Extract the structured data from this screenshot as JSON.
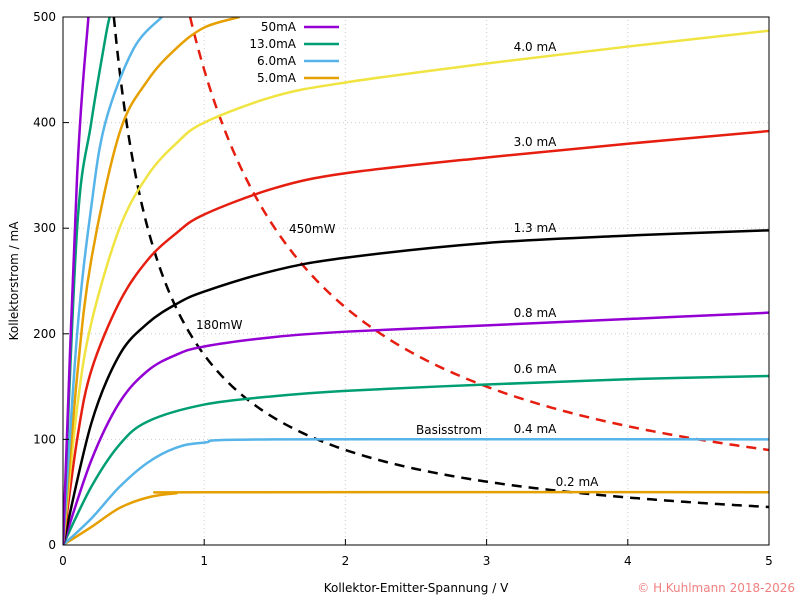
{
  "chart_data": {
    "type": "line",
    "xlabel": "Kollektor-Emitter-Spannung / V",
    "ylabel": "Kollektorstrom / mA",
    "xlim": [
      0,
      5
    ],
    "ylim": [
      0,
      500
    ],
    "xticks": [
      "0",
      "1",
      "2",
      "3",
      "4",
      "5"
    ],
    "yticks": [
      "0",
      "100",
      "200",
      "300",
      "400",
      "500"
    ],
    "grid": true,
    "legend_position": "top-left",
    "legend_title": "Basisstrom",
    "series": [
      {
        "name": "0.2 mA",
        "color": "#e69f00",
        "points": [
          [
            0,
            0
          ],
          [
            0.2,
            17
          ],
          [
            0.4,
            35
          ],
          [
            0.6,
            45
          ],
          [
            0.8,
            49
          ],
          [
            1,
            50
          ],
          [
            5,
            50
          ]
        ]
      },
      {
        "name": "0.4 mA",
        "color": "#56b4e9",
        "points": [
          [
            0,
            0
          ],
          [
            0.2,
            25
          ],
          [
            0.4,
            55
          ],
          [
            0.6,
            78
          ],
          [
            0.8,
            92
          ],
          [
            1,
            97
          ],
          [
            1.5,
            100
          ],
          [
            5,
            100
          ]
        ]
      },
      {
        "name": "0.6 mA",
        "color": "#009e73",
        "points": [
          [
            0,
            0
          ],
          [
            0.2,
            55
          ],
          [
            0.4,
            95
          ],
          [
            0.6,
            117
          ],
          [
            1,
            133
          ],
          [
            1.5,
            141
          ],
          [
            2,
            146
          ],
          [
            3,
            152
          ],
          [
            4,
            157
          ],
          [
            5,
            160
          ]
        ]
      },
      {
        "name": "0.8 mA",
        "color": "#9400d3",
        "points": [
          [
            0,
            0
          ],
          [
            0.2,
            80
          ],
          [
            0.4,
            135
          ],
          [
            0.6,
            165
          ],
          [
            0.8,
            180
          ],
          [
            1,
            188
          ],
          [
            1.5,
            197
          ],
          [
            2,
            202
          ],
          [
            3,
            208
          ],
          [
            4,
            214
          ],
          [
            5,
            220
          ]
        ]
      },
      {
        "name": "1.3 mA",
        "color": "#000000",
        "points": [
          [
            0,
            0
          ],
          [
            0.2,
            115
          ],
          [
            0.4,
            180
          ],
          [
            0.6,
            210
          ],
          [
            0.8,
            228
          ],
          [
            1,
            240
          ],
          [
            1.5,
            260
          ],
          [
            2,
            272
          ],
          [
            3,
            286
          ],
          [
            4,
            293
          ],
          [
            5,
            298
          ]
        ]
      },
      {
        "name": "3.0 mA",
        "color": "#e51e10",
        "points": [
          [
            0,
            0
          ],
          [
            0.1,
            100
          ],
          [
            0.2,
            165
          ],
          [
            0.4,
            230
          ],
          [
            0.6,
            270
          ],
          [
            0.8,
            295
          ],
          [
            1,
            313
          ],
          [
            1.5,
            338
          ],
          [
            2,
            352
          ],
          [
            3,
            367
          ],
          [
            4,
            380
          ],
          [
            5,
            392
          ]
        ]
      },
      {
        "name": "4.0 mA",
        "color": "#f0e442",
        "points": [
          [
            0,
            0
          ],
          [
            0.1,
            130
          ],
          [
            0.2,
            210
          ],
          [
            0.4,
            300
          ],
          [
            0.6,
            350
          ],
          [
            0.8,
            380
          ],
          [
            1,
            400
          ],
          [
            1.5,
            425
          ],
          [
            2,
            438
          ],
          [
            3,
            456
          ],
          [
            4,
            472
          ],
          [
            5,
            487
          ]
        ]
      },
      {
        "name": "5.0mA",
        "color": "#e69f00",
        "legend": true,
        "points": [
          [
            0,
            0
          ],
          [
            0.1,
            160
          ],
          [
            0.2,
            270
          ],
          [
            0.4,
            390
          ],
          [
            0.6,
            440
          ],
          [
            0.8,
            470
          ],
          [
            1,
            490
          ],
          [
            1.25,
            500
          ]
        ]
      },
      {
        "name": "6.0mA",
        "color": "#56b4e9",
        "legend": true,
        "points": [
          [
            0,
            0
          ],
          [
            0.1,
            200
          ],
          [
            0.2,
            320
          ],
          [
            0.3,
            400
          ],
          [
            0.5,
            470
          ],
          [
            0.7,
            500
          ]
        ]
      },
      {
        "name": "13.0mA",
        "color": "#009e73",
        "legend": true,
        "points": [
          [
            0,
            0
          ],
          [
            0.1,
            300
          ],
          [
            0.2,
            400
          ],
          [
            0.3,
            480
          ],
          [
            0.33,
            500
          ]
        ]
      },
      {
        "name": "50mA",
        "color": "#9400d3",
        "legend": true,
        "points": [
          [
            0,
            0
          ],
          [
            0.1,
            350
          ],
          [
            0.18,
            500
          ]
        ]
      }
    ],
    "power_curves": [
      {
        "name": "180mW",
        "power_mW": 180,
        "color": "#000000",
        "style": "dashed"
      },
      {
        "name": "450mW",
        "power_mW": 450,
        "color": "#e51e10",
        "style": "dashed"
      }
    ]
  },
  "copyright": "© H.Kuhlmann 2018-2026"
}
